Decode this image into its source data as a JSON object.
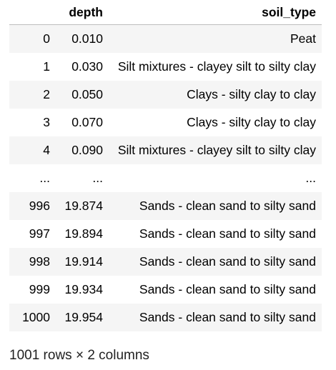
{
  "table": {
    "index_header": "",
    "columns": [
      "depth",
      "soil_type"
    ],
    "rows": [
      {
        "index": "0",
        "depth": "0.010",
        "soil_type": "Peat"
      },
      {
        "index": "1",
        "depth": "0.030",
        "soil_type": "Silt mixtures - clayey silt to silty clay"
      },
      {
        "index": "2",
        "depth": "0.050",
        "soil_type": "Clays - silty clay to clay"
      },
      {
        "index": "3",
        "depth": "0.070",
        "soil_type": "Clays - silty clay to clay"
      },
      {
        "index": "4",
        "depth": "0.090",
        "soil_type": "Silt mixtures - clayey silt to silty clay"
      },
      {
        "index": "...",
        "depth": "...",
        "soil_type": "..."
      },
      {
        "index": "996",
        "depth": "19.874",
        "soil_type": "Sands - clean sand to silty sand"
      },
      {
        "index": "997",
        "depth": "19.894",
        "soil_type": "Sands - clean sand to silty sand"
      },
      {
        "index": "998",
        "depth": "19.914",
        "soil_type": "Sands - clean sand to silty sand"
      },
      {
        "index": "999",
        "depth": "19.934",
        "soil_type": "Sands - clean sand to silty sand"
      },
      {
        "index": "1000",
        "depth": "19.954",
        "soil_type": "Sands - clean sand to silty sand"
      }
    ]
  },
  "footer": {
    "shape_text": "1001 rows × 2 columns"
  },
  "colors": {
    "stripe": "#f5f5f5",
    "header_rule": "#bdbdbd"
  }
}
